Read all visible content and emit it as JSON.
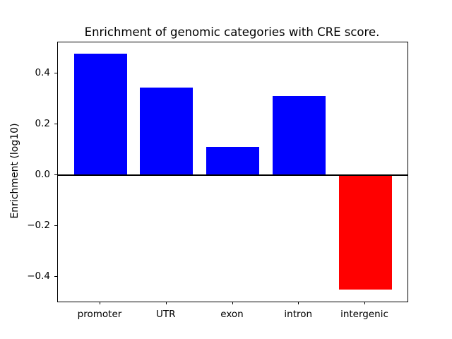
{
  "figure": {
    "title": "Enrichment of genomic categories with CRE score.",
    "background": "#ffffff"
  },
  "chart_data": {
    "type": "bar",
    "title": "Enrichment of genomic categories with CRE score.",
    "xlabel": "",
    "ylabel": "Enrichment (log10)",
    "categories": [
      "promoter",
      "UTR",
      "exon",
      "intron",
      "intergenic"
    ],
    "values": [
      0.477,
      0.343,
      0.111,
      0.31,
      -0.449
    ],
    "bar_colors": [
      "#0000ff",
      "#0000ff",
      "#0000ff",
      "#0000ff",
      "#ff0000"
    ],
    "positive_color": "#0000ff",
    "negative_color": "#ff0000",
    "yticks": [
      0.4,
      0.2,
      0.0,
      -0.2,
      -0.4
    ],
    "ytick_labels": [
      "0.4",
      "0.2",
      "0.0",
      "−0.2",
      "−0.4"
    ],
    "ylim": [
      -0.497,
      0.521
    ],
    "xlim": [
      -0.64,
      4.64
    ],
    "bar_width": 0.8,
    "grid": false,
    "legend": null,
    "zero_line": true,
    "axis_color": "#000000",
    "text_color": "#000000"
  }
}
